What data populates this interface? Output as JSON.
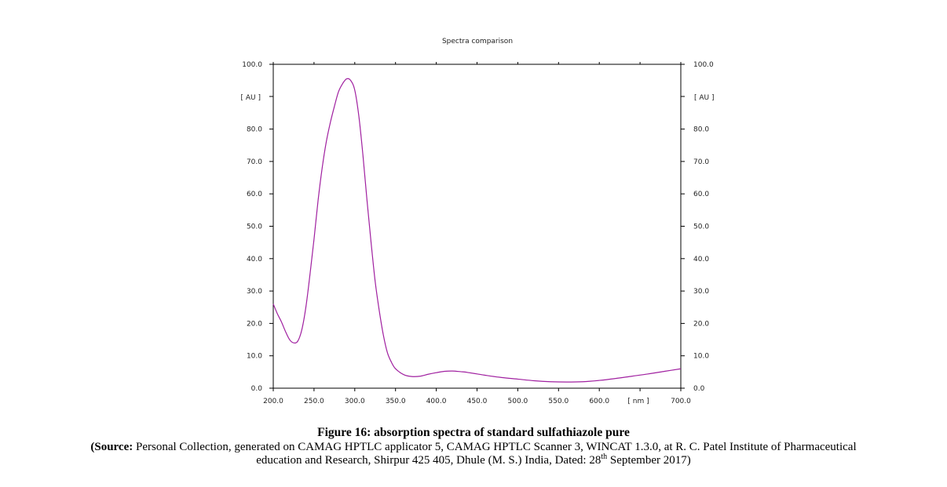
{
  "chart_data": {
    "type": "line",
    "title": "Spectra comparison",
    "x_unit_label": "[ nm ]",
    "y_unit_label": "[ AU ]",
    "xlim": [
      200,
      700
    ],
    "ylim": [
      0,
      100
    ],
    "x_ticks": [
      "200.0",
      "250.0",
      "300.0",
      "350.0",
      "400.0",
      "450.0",
      "500.0",
      "550.0",
      "600.0",
      "700.0"
    ],
    "x_tick_values": [
      200,
      250,
      300,
      350,
      400,
      450,
      500,
      550,
      600,
      700
    ],
    "y_ticks": [
      "0.0",
      "10.0",
      "20.0",
      "30.0",
      "40.0",
      "50.0",
      "60.0",
      "70.0",
      "80.0",
      "100.0"
    ],
    "y_tick_values": [
      0,
      10,
      20,
      30,
      40,
      50,
      60,
      70,
      80,
      100
    ],
    "line_color": "#a020a0",
    "grid": false,
    "series": [
      {
        "x": [
          200,
          205,
          210,
          215,
          220,
          225,
          230,
          235,
          240,
          245,
          250,
          255,
          260,
          265,
          270,
          275,
          280,
          285,
          290,
          295,
          300,
          305,
          310,
          315,
          320,
          325,
          330,
          335,
          340,
          345,
          350,
          360,
          370,
          380,
          390,
          400,
          410,
          420,
          430,
          435,
          440,
          450,
          460,
          480,
          500,
          520,
          540,
          560,
          580,
          600,
          620,
          640,
          660,
          680,
          700
        ],
        "y": [
          26,
          23,
          20.5,
          17.5,
          15,
          14,
          14.5,
          18,
          25,
          35,
          46,
          58,
          68,
          76,
          82,
          87,
          91.5,
          94,
          95.5,
          95,
          92,
          84,
          72,
          58,
          45,
          33,
          24,
          16.5,
          11,
          8,
          6,
          4.2,
          3.6,
          3.7,
          4.3,
          4.8,
          5.2,
          5.3,
          5.1,
          5.0,
          4.8,
          4.4,
          4.0,
          3.3,
          2.8,
          2.3,
          2.0,
          1.9,
          2.0,
          2.4,
          3.0,
          3.7,
          4.4,
          5.2,
          6.0
        ]
      }
    ]
  },
  "caption": {
    "title": "Figure 16: absorption spectra of standard sulfathiazole pure",
    "source_bold": "(Source:",
    "source_line1": " Personal Collection, generated on CAMAG HPTLC applicator 5, CAMAG HPTLC Scanner 3, WINCAT 1.3.0, at R. C. Patel Institute of Pharmaceutical",
    "source_line2a": "education and Research, Shirpur 425 405, Dhule (M. S.) India, Dated: 28",
    "source_sup": "th",
    "source_line2b": " September 2017)"
  }
}
